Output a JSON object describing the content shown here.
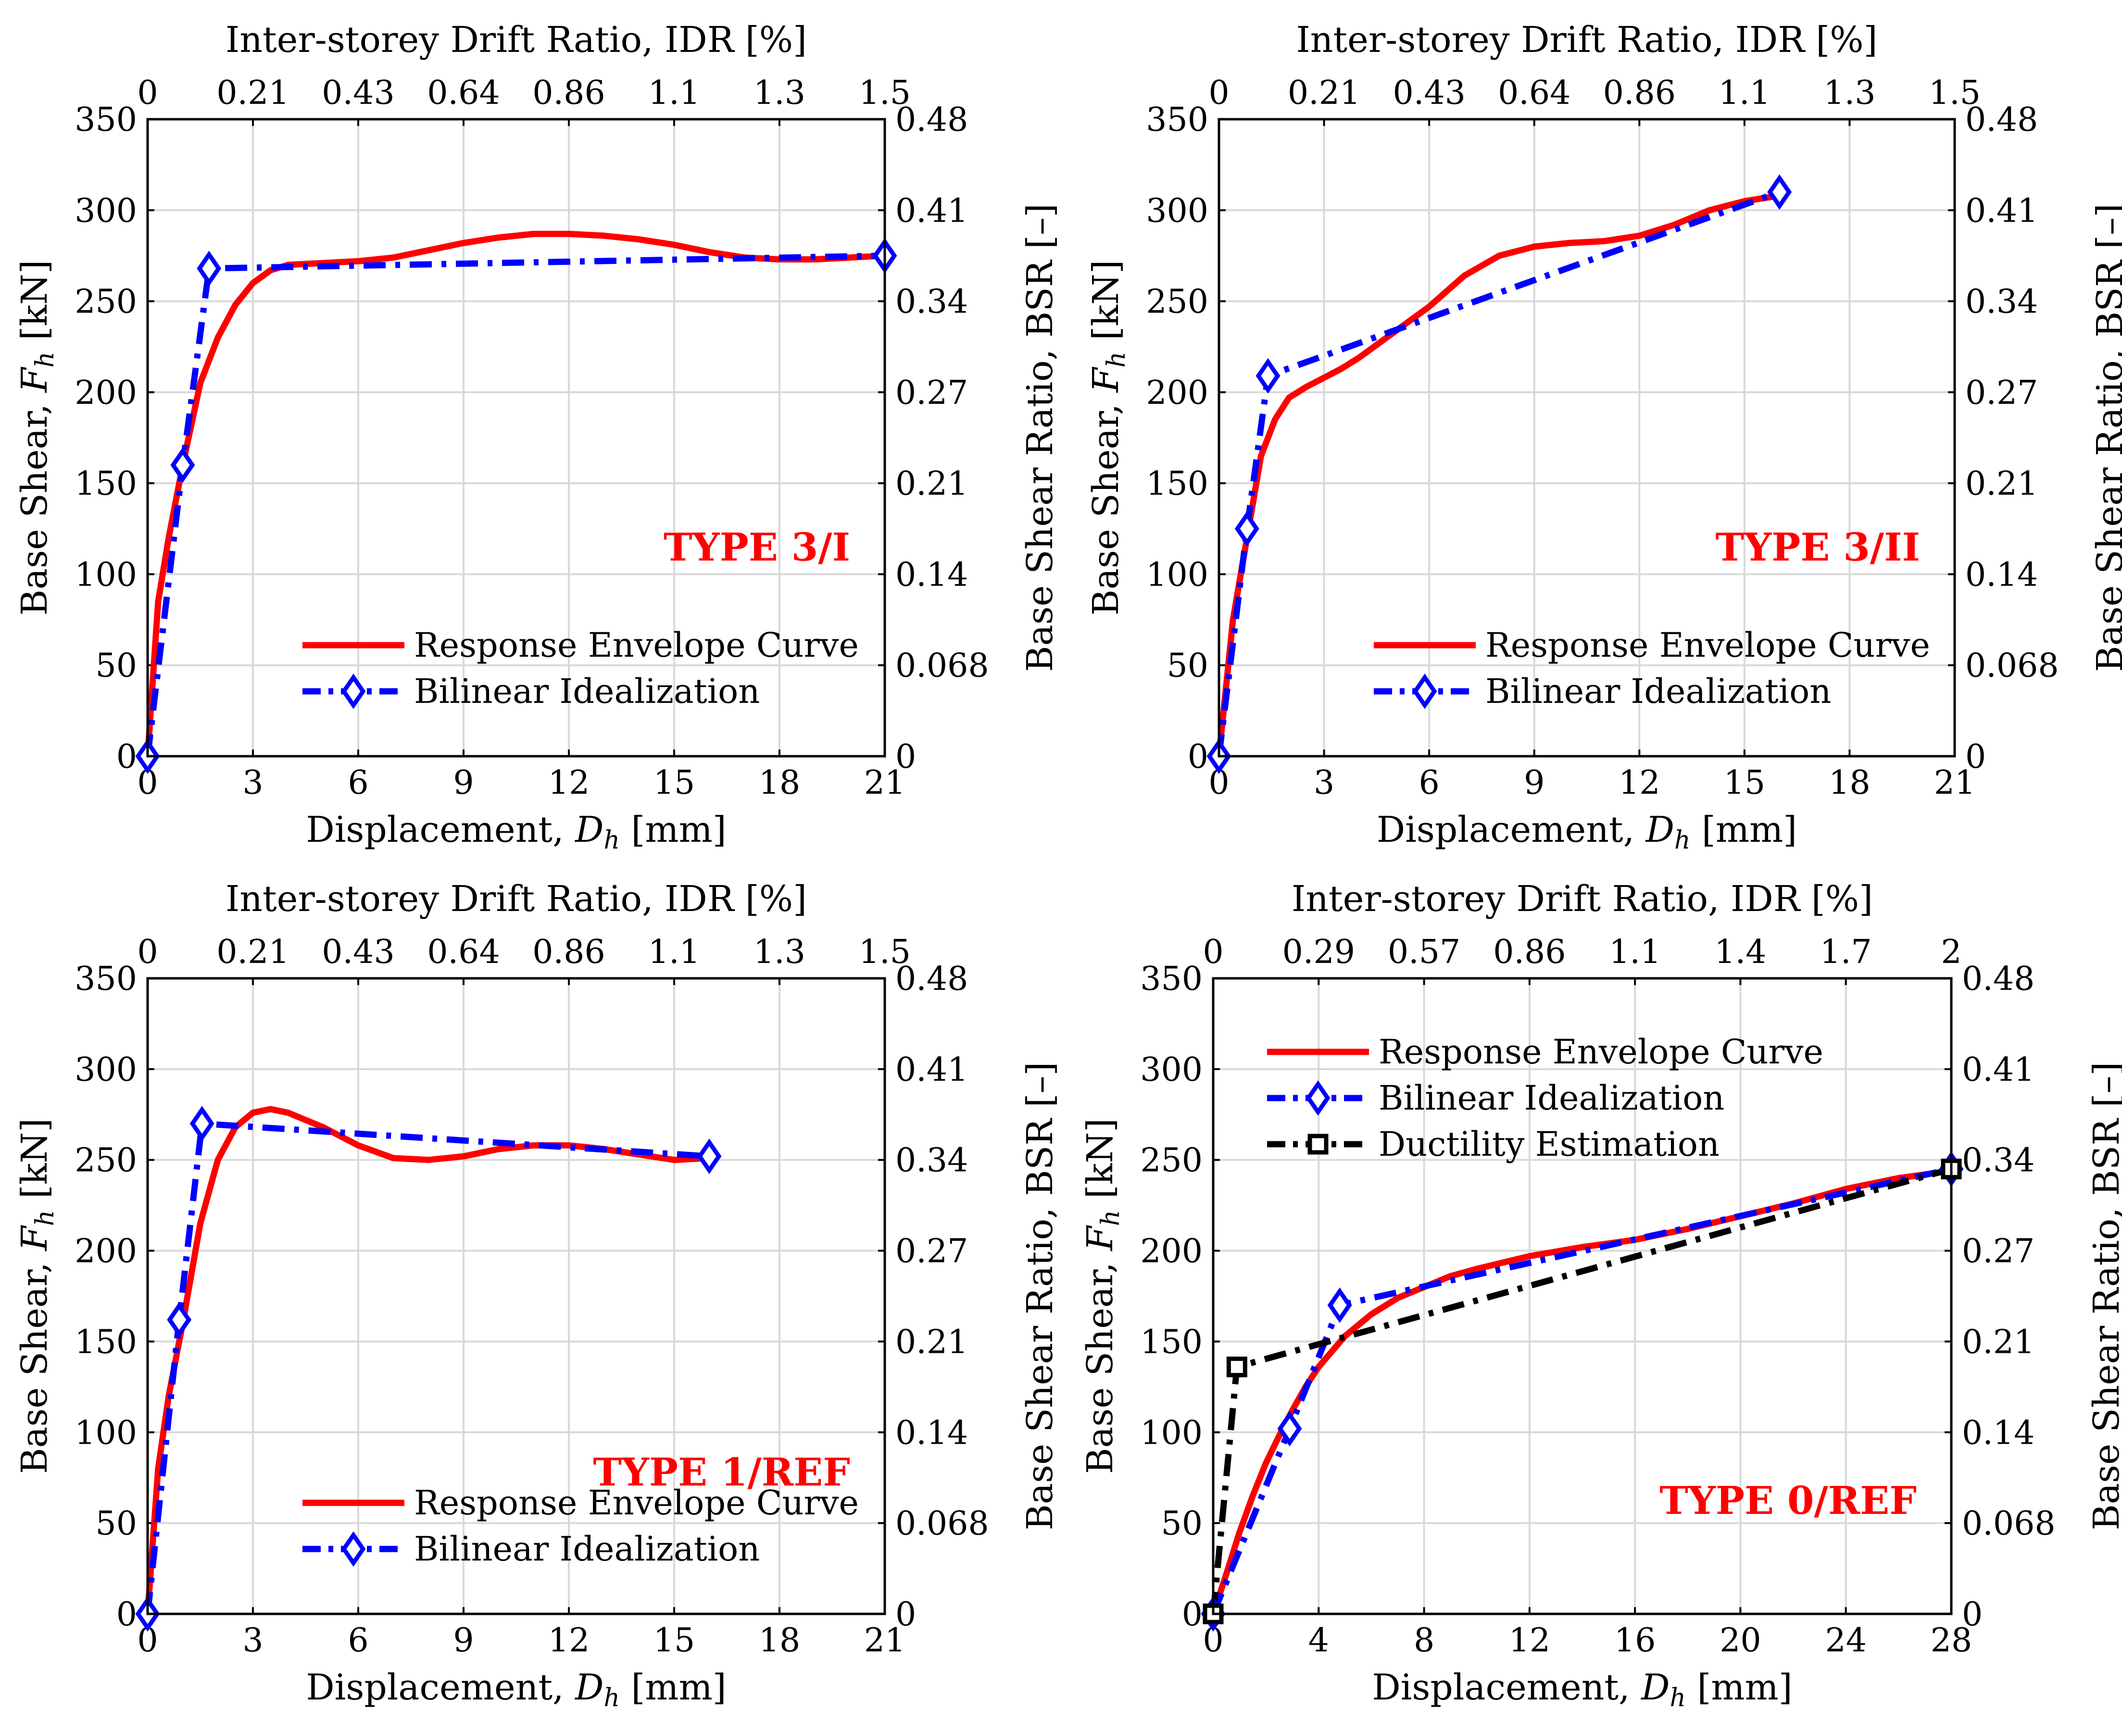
{
  "chart_data": [
    {
      "type": "line",
      "title": "TYPE 3/I",
      "xlabel": "Displacement, D_h [mm]",
      "ylabel": "Base Shear, F_h [kN]",
      "y2label": "Base Shear Ratio, BSR [–]",
      "x2label": "Inter-storey Drift Ratio, IDR [%]",
      "xlim": [
        0,
        21
      ],
      "ylim": [
        0,
        350
      ],
      "xticks": [
        "0",
        "3",
        "6",
        "9",
        "12",
        "15",
        "18",
        "21"
      ],
      "yticks": [
        "0",
        "50",
        "100",
        "150",
        "200",
        "250",
        "300",
        "350"
      ],
      "x2ticks": [
        "0",
        "0.21",
        "0.43",
        "0.64",
        "0.86",
        "1.1",
        "1.3",
        "1.5"
      ],
      "y2ticks": [
        "0",
        "0.068",
        "0.14",
        "0.21",
        "0.27",
        "0.34",
        "0.41",
        "0.48"
      ],
      "legend_position": "bottom-right",
      "label_position": "middle-right",
      "series": [
        {
          "name": "Response Envelope Curve",
          "color": "#ff0000",
          "style": "solid",
          "x": [
            0,
            0.3,
            0.6,
            1.0,
            1.5,
            2.0,
            2.5,
            3.0,
            3.5,
            4.0,
            5.0,
            6.0,
            7.0,
            8.0,
            9.0,
            10.0,
            11.0,
            12.0,
            13.0,
            14.0,
            15.0,
            16.0,
            17.0,
            18.0,
            19.0,
            20.0,
            21.0
          ],
          "y": [
            0,
            85,
            120,
            160,
            205,
            230,
            248,
            260,
            267,
            270,
            271,
            272,
            274,
            278,
            282,
            285,
            287,
            287,
            286,
            284,
            281,
            277,
            274,
            273,
            273,
            274,
            275
          ]
        },
        {
          "name": "Bilinear Idealization",
          "color": "#0000ff",
          "style": "dashdot",
          "marker": "diamond",
          "x": [
            0,
            1.0,
            1.75,
            21.0
          ],
          "y": [
            0,
            160,
            268,
            275
          ]
        }
      ]
    },
    {
      "type": "line",
      "title": "TYPE 3/II",
      "xlabel": "Displacement, D_h [mm]",
      "ylabel": "Base Shear, F_h [kN]",
      "y2label": "Base Shear Ratio, BSR [–]",
      "x2label": "Inter-storey Drift Ratio, IDR [%]",
      "xlim": [
        0,
        21
      ],
      "ylim": [
        0,
        350
      ],
      "xticks": [
        "0",
        "3",
        "6",
        "9",
        "12",
        "15",
        "18",
        "21"
      ],
      "yticks": [
        "0",
        "50",
        "100",
        "150",
        "200",
        "250",
        "300",
        "350"
      ],
      "x2ticks": [
        "0",
        "0.21",
        "0.43",
        "0.64",
        "0.86",
        "1.1",
        "1.3",
        "1.5"
      ],
      "y2ticks": [
        "0",
        "0.068",
        "0.14",
        "0.21",
        "0.27",
        "0.34",
        "0.41",
        "0.48"
      ],
      "legend_position": "bottom-right",
      "label_position": "middle-right",
      "series": [
        {
          "name": "Response Envelope Curve",
          "color": "#ff0000",
          "style": "solid",
          "x": [
            0,
            0.4,
            0.8,
            1.2,
            1.6,
            2.0,
            2.5,
            3.0,
            3.5,
            4.0,
            5.0,
            6.0,
            7.0,
            8.0,
            9.0,
            10.0,
            11.0,
            12.0,
            13.0,
            14.0,
            15.0,
            16.0
          ],
          "y": [
            0,
            75,
            120,
            165,
            185,
            197,
            203,
            208,
            213,
            219,
            233,
            247,
            264,
            275,
            280,
            282,
            283,
            286,
            292,
            300,
            305,
            308
          ]
        },
        {
          "name": "Bilinear Idealization",
          "color": "#0000ff",
          "style": "dashdot",
          "marker": "diamond",
          "x": [
            0,
            0.8,
            1.4,
            16.0
          ],
          "y": [
            0,
            125,
            209,
            310
          ]
        }
      ]
    },
    {
      "type": "line",
      "title": "TYPE 1/REF",
      "xlabel": "Displacement, D_h [mm]",
      "ylabel": "Base Shear, F_h [kN]",
      "y2label": "Base Shear Ratio, BSR [–]",
      "x2label": "Inter-storey Drift Ratio, IDR [%]",
      "xlim": [
        0,
        21
      ],
      "ylim": [
        0,
        350
      ],
      "xticks": [
        "0",
        "3",
        "6",
        "9",
        "12",
        "15",
        "18",
        "21"
      ],
      "yticks": [
        "0",
        "50",
        "100",
        "150",
        "200",
        "250",
        "300",
        "350"
      ],
      "x2ticks": [
        "0",
        "0.21",
        "0.43",
        "0.64",
        "0.86",
        "1.1",
        "1.3",
        "1.5"
      ],
      "y2ticks": [
        "0",
        "0.068",
        "0.14",
        "0.21",
        "0.27",
        "0.34",
        "0.41",
        "0.48"
      ],
      "legend_position": "bottom-right",
      "label_position": "middle-right",
      "series": [
        {
          "name": "Response Envelope Curve",
          "color": "#ff0000",
          "style": "solid",
          "x": [
            0,
            0.3,
            0.6,
            1.0,
            1.5,
            2.0,
            2.5,
            3.0,
            3.5,
            4.0,
            5.0,
            6.0,
            7.0,
            8.0,
            9.0,
            10.0,
            11.0,
            12.0,
            13.0,
            14.0,
            15.0,
            16.0
          ],
          "y": [
            0,
            80,
            120,
            160,
            215,
            250,
            268,
            276,
            278,
            276,
            268,
            258,
            251,
            250,
            252,
            256,
            258,
            258,
            256,
            253,
            250,
            251
          ]
        },
        {
          "name": "Bilinear Idealization",
          "color": "#0000ff",
          "style": "dashdot",
          "marker": "diamond",
          "x": [
            0,
            0.9,
            1.55,
            16.0
          ],
          "y": [
            0,
            162,
            270,
            252
          ]
        }
      ]
    },
    {
      "type": "line",
      "title": "TYPE 0/REF",
      "xlabel": "Displacement, D_h [mm]",
      "ylabel": "Base Shear, F_h [kN]",
      "y2label": "Base Shear Ratio, BSR [–]",
      "x2label": "Inter-storey Drift Ratio, IDR [%]",
      "xlim": [
        0,
        28
      ],
      "ylim": [
        0,
        350
      ],
      "xticks": [
        "0",
        "4",
        "8",
        "12",
        "16",
        "20",
        "24",
        "28"
      ],
      "yticks": [
        "0",
        "50",
        "100",
        "150",
        "200",
        "250",
        "300",
        "350"
      ],
      "x2ticks": [
        "0",
        "0.29",
        "0.57",
        "0.86",
        "1.1",
        "1.4",
        "1.7",
        "2"
      ],
      "y2ticks": [
        "0",
        "0.068",
        "0.14",
        "0.21",
        "0.27",
        "0.34",
        "0.41",
        "0.48"
      ],
      "legend_position": "top-left",
      "label_position": "bottom-right",
      "series": [
        {
          "name": "Response Envelope Curve",
          "color": "#ff0000",
          "style": "solid",
          "x": [
            0,
            0.5,
            1.0,
            1.5,
            2.0,
            2.5,
            3.0,
            3.5,
            4.0,
            5.0,
            6.0,
            7.0,
            8.0,
            9.0,
            10.0,
            12.0,
            14.0,
            16.0,
            18.0,
            20.0,
            22.0,
            24.0,
            26.0,
            28.0
          ],
          "y": [
            0,
            22,
            45,
            65,
            83,
            98,
            112,
            125,
            136,
            153,
            165,
            174,
            180,
            186,
            190,
            197,
            202,
            206,
            212,
            219,
            226,
            234,
            240,
            244
          ]
        },
        {
          "name": "Bilinear Idealization",
          "color": "#0000ff",
          "style": "dashdot",
          "marker": "diamond",
          "x": [
            0,
            2.9,
            4.8,
            28.0
          ],
          "y": [
            0,
            102,
            170,
            245
          ]
        },
        {
          "name": "Ductility Estimation",
          "color": "#000000",
          "style": "dashdot",
          "marker": "square",
          "x": [
            0,
            0.9,
            28.0
          ],
          "y": [
            0,
            136,
            245
          ]
        }
      ]
    }
  ]
}
